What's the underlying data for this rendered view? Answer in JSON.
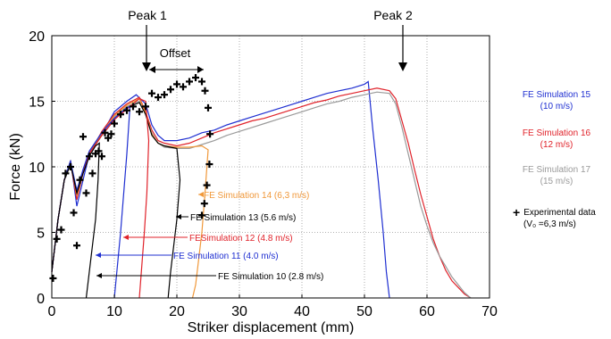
{
  "chart_data": {
    "type": "line",
    "title": "",
    "xlabel": "Striker displacement (mm)",
    "ylabel": "Force (kN)",
    "xlim": [
      0,
      70
    ],
    "ylim": [
      0,
      20
    ],
    "xticks": [
      "0",
      "10",
      "20",
      "30",
      "40",
      "50",
      "60",
      "70"
    ],
    "yticks": [
      "0",
      "5",
      "10",
      "15",
      "20"
    ],
    "grid": "dotted",
    "annotations": {
      "peak1": "Peak 1",
      "peak2": "Peak 2",
      "offset": "Offset"
    },
    "legend": {
      "placement": "right",
      "items": [
        {
          "line1": "FE Simulation 15",
          "line2": "(10 m/s)",
          "color": "#1f2fd1"
        },
        {
          "line1": "FE Simulation 16",
          "line2": "(12 m/s)",
          "color": "#e0222a"
        },
        {
          "line1": "FE Simulation 17",
          "line2": "(15 m/s)",
          "color": "#9a9a9a"
        },
        {
          "line1": "Experimental data",
          "line2": "(V₀ =6,3 m/s)",
          "color": "#000000",
          "marker": "+"
        }
      ]
    },
    "curve_labels": [
      {
        "text": "FE Simulation 14 (6,3 m/s)",
        "color": "#f0983a"
      },
      {
        "text": "FE Simulation 13  (5.6 m/s)",
        "color": "#000000"
      },
      {
        "text": "FESimulation 12 (4.8 m/s)",
        "color": "#e0222a"
      },
      {
        "text": "FE Simulation 11 (4.0 m/s)",
        "color": "#1f2fd1"
      },
      {
        "text": "FE Simulation 10 (2.8 m/s)",
        "color": "#000000"
      }
    ],
    "series": [
      {
        "name": "FE Simulation 15 (10 m/s)",
        "color": "#1f2fd1",
        "points": [
          [
            0,
            2
          ],
          [
            1,
            6
          ],
          [
            2,
            9
          ],
          [
            3,
            10.5
          ],
          [
            4,
            7
          ],
          [
            5,
            9
          ],
          [
            6,
            11
          ],
          [
            8,
            12.5
          ],
          [
            10,
            14.2
          ],
          [
            12,
            15
          ],
          [
            13.5,
            15.5
          ],
          [
            15,
            14.8
          ],
          [
            16,
            13.2
          ],
          [
            17,
            12.4
          ],
          [
            18,
            12
          ],
          [
            20,
            12
          ],
          [
            22,
            12.2
          ],
          [
            24,
            12.6
          ],
          [
            26,
            12.8
          ],
          [
            28,
            13.2
          ],
          [
            30,
            13.5
          ],
          [
            32,
            13.8
          ],
          [
            34,
            14.1
          ],
          [
            36,
            14.4
          ],
          [
            38,
            14.7
          ],
          [
            40,
            15.0
          ],
          [
            42,
            15.3
          ],
          [
            44,
            15.6
          ],
          [
            46,
            15.8
          ],
          [
            48,
            16.0
          ],
          [
            50,
            16.3
          ],
          [
            50.6,
            16.5
          ],
          [
            51.3,
            13
          ],
          [
            52.2,
            9
          ],
          [
            53,
            5
          ],
          [
            53.5,
            2
          ],
          [
            54,
            0
          ]
        ]
      },
      {
        "name": "FE Simulation 16 (12 m/s)",
        "color": "#e0222a",
        "points": [
          [
            0,
            2
          ],
          [
            1,
            6
          ],
          [
            2,
            9
          ],
          [
            3,
            10.3
          ],
          [
            4,
            7.5
          ],
          [
            5,
            9.5
          ],
          [
            6,
            11
          ],
          [
            8,
            12.7
          ],
          [
            10,
            14
          ],
          [
            12,
            14.8
          ],
          [
            14,
            15.3
          ],
          [
            15,
            14.2
          ],
          [
            16,
            12.8
          ],
          [
            17,
            12
          ],
          [
            18,
            11.8
          ],
          [
            20,
            11.6
          ],
          [
            22,
            11.8
          ],
          [
            24,
            12.2
          ],
          [
            26,
            12.6
          ],
          [
            28,
            12.9
          ],
          [
            30,
            13.2
          ],
          [
            32,
            13.5
          ],
          [
            34,
            13.7
          ],
          [
            36,
            14
          ],
          [
            38,
            14.3
          ],
          [
            40,
            14.6
          ],
          [
            42,
            14.9
          ],
          [
            44,
            15.1
          ],
          [
            46,
            15.4
          ],
          [
            48,
            15.6
          ],
          [
            50,
            15.8
          ],
          [
            52,
            16
          ],
          [
            54,
            15.8
          ],
          [
            55,
            15.2
          ],
          [
            56,
            13.5
          ],
          [
            57,
            11.8
          ],
          [
            58,
            9.8
          ],
          [
            59,
            7.9
          ],
          [
            60,
            6.2
          ],
          [
            61,
            4.5
          ],
          [
            62,
            3.2
          ],
          [
            63,
            2.1
          ],
          [
            64,
            1.3
          ],
          [
            65,
            0.8
          ],
          [
            66,
            0.3
          ],
          [
            67,
            0
          ]
        ]
      },
      {
        "name": "FE Simulation 17 (15 m/s)",
        "color": "#9a9a9a",
        "points": [
          [
            0,
            2
          ],
          [
            1,
            6
          ],
          [
            2,
            9
          ],
          [
            3,
            10.2
          ],
          [
            4,
            8
          ],
          [
            5,
            9.8
          ],
          [
            6,
            11.2
          ],
          [
            8,
            12.6
          ],
          [
            10,
            13.8
          ],
          [
            12,
            14.6
          ],
          [
            14,
            15
          ],
          [
            15,
            14
          ],
          [
            16,
            12.6
          ],
          [
            17,
            11.8
          ],
          [
            18,
            11.5
          ],
          [
            20,
            11.4
          ],
          [
            22,
            11.4
          ],
          [
            24,
            11.7
          ],
          [
            26,
            12
          ],
          [
            28,
            12.4
          ],
          [
            30,
            12.7
          ],
          [
            32,
            13
          ],
          [
            34,
            13.3
          ],
          [
            36,
            13.6
          ],
          [
            38,
            13.9
          ],
          [
            40,
            14.2
          ],
          [
            42,
            14.5
          ],
          [
            44,
            14.8
          ],
          [
            46,
            15
          ],
          [
            48,
            15.3
          ],
          [
            50,
            15.5
          ],
          [
            52,
            15.7
          ],
          [
            54,
            15.6
          ],
          [
            55,
            14.8
          ],
          [
            56,
            13
          ],
          [
            57,
            11
          ],
          [
            58,
            9
          ],
          [
            59,
            7
          ],
          [
            60,
            5.5
          ],
          [
            61,
            4.2
          ],
          [
            62,
            3.2
          ],
          [
            63,
            2.4
          ],
          [
            64,
            1.6
          ],
          [
            65,
            1.0
          ],
          [
            66,
            0.4
          ],
          [
            67,
            0
          ]
        ]
      },
      {
        "name": "FE Simulation 14 (6,3 m/s)",
        "color": "#f0983a",
        "points": [
          [
            0,
            2
          ],
          [
            1,
            6
          ],
          [
            2,
            9
          ],
          [
            3,
            10.4
          ],
          [
            4,
            7.8
          ],
          [
            5,
            9.5
          ],
          [
            6,
            11
          ],
          [
            8,
            12.5
          ],
          [
            10,
            13.9
          ],
          [
            12,
            14.7
          ],
          [
            14,
            15.2
          ],
          [
            15,
            14.1
          ],
          [
            16,
            12.5
          ],
          [
            17,
            11.8
          ],
          [
            18,
            11.6
          ],
          [
            20,
            11.5
          ],
          [
            22,
            11.5
          ],
          [
            24,
            11.6
          ],
          [
            25,
            11.3
          ],
          [
            24.5,
            8
          ],
          [
            24,
            5
          ],
          [
            23.5,
            3
          ],
          [
            23,
            1
          ],
          [
            22.5,
            0
          ]
        ]
      },
      {
        "name": "FE Simulation 13 (5.6 m/s)",
        "color": "#000000",
        "points": [
          [
            0,
            2
          ],
          [
            1,
            6
          ],
          [
            2,
            9
          ],
          [
            3,
            10.2
          ],
          [
            4,
            8.2
          ],
          [
            5,
            9.6
          ],
          [
            6,
            11
          ],
          [
            8,
            12.4
          ],
          [
            10,
            13.6
          ],
          [
            12,
            14.5
          ],
          [
            14,
            14.9
          ],
          [
            15,
            14
          ],
          [
            16,
            12.4
          ],
          [
            17,
            11.8
          ],
          [
            18,
            11.6
          ],
          [
            19,
            11.5
          ],
          [
            20,
            11.4
          ],
          [
            20.5,
            9
          ],
          [
            20,
            6
          ],
          [
            19.5,
            4
          ],
          [
            19,
            2
          ],
          [
            18.6,
            0
          ]
        ]
      },
      {
        "name": "FE Simulation 12 (4.8 m/s)",
        "color": "#e0222a",
        "points": [
          [
            0,
            2
          ],
          [
            1,
            6
          ],
          [
            2,
            9
          ],
          [
            3,
            10.3
          ],
          [
            4,
            8
          ],
          [
            5,
            9.6
          ],
          [
            6,
            11
          ],
          [
            8,
            12.4
          ],
          [
            10,
            13.6
          ],
          [
            12,
            14.4
          ],
          [
            14,
            15.2
          ],
          [
            15,
            15
          ],
          [
            15.5,
            12
          ],
          [
            15.2,
            8
          ],
          [
            14.8,
            5
          ],
          [
            14.4,
            2.5
          ],
          [
            14,
            0
          ]
        ]
      },
      {
        "name": "FE Simulation 11 (4.0 m/s)",
        "color": "#1f2fd1",
        "points": [
          [
            0,
            2
          ],
          [
            1,
            6
          ],
          [
            2,
            9
          ],
          [
            3,
            10.4
          ],
          [
            4,
            8.2
          ],
          [
            5,
            9.8
          ],
          [
            6,
            11.2
          ],
          [
            8,
            12.6
          ],
          [
            10,
            13.7
          ],
          [
            12,
            14.5
          ],
          [
            12.5,
            14.6
          ],
          [
            12,
            11
          ],
          [
            11.5,
            8
          ],
          [
            11,
            5
          ],
          [
            10.5,
            2.5
          ],
          [
            10,
            0
          ]
        ]
      },
      {
        "name": "FE Simulation 10 (2.8 m/s)",
        "color": "#000000",
        "points": [
          [
            0,
            2
          ],
          [
            1,
            6
          ],
          [
            2,
            9
          ],
          [
            3,
            10.2
          ],
          [
            4,
            8
          ],
          [
            5,
            9.5
          ],
          [
            6,
            10.8
          ],
          [
            7,
            11.6
          ],
          [
            7.6,
            11.8
          ],
          [
            7.4,
            9
          ],
          [
            7,
            6
          ],
          [
            6.5,
            4
          ],
          [
            6,
            2
          ],
          [
            5.5,
            0
          ]
        ]
      },
      {
        "name": "Experimental data",
        "color": "#000000",
        "marker": "+",
        "points": [
          [
            0.2,
            1.5
          ],
          [
            0.8,
            4.5
          ],
          [
            1.5,
            5.2
          ],
          [
            2.2,
            9.5
          ],
          [
            3,
            10
          ],
          [
            3.5,
            6.5
          ],
          [
            4,
            4
          ],
          [
            4.5,
            9
          ],
          [
            5,
            12.3
          ],
          [
            5.5,
            8
          ],
          [
            6,
            10.8
          ],
          [
            6.5,
            9.5
          ],
          [
            7,
            11
          ],
          [
            7.5,
            11.2
          ],
          [
            8,
            10.8
          ],
          [
            8.5,
            12.6
          ],
          [
            9,
            12.2
          ],
          [
            9.5,
            12.5
          ],
          [
            10,
            13.3
          ],
          [
            11,
            14
          ],
          [
            12,
            14.3
          ],
          [
            13,
            14.6
          ],
          [
            14,
            14.2
          ],
          [
            15,
            14.6
          ],
          [
            16,
            15.6
          ],
          [
            17,
            15.3
          ],
          [
            18,
            15.5
          ],
          [
            19,
            15.9
          ],
          [
            20,
            16.3
          ],
          [
            21,
            16.1
          ],
          [
            22,
            16.5
          ],
          [
            23,
            16.8
          ],
          [
            24,
            16.5
          ],
          [
            24.5,
            15.8
          ],
          [
            25,
            14.5
          ],
          [
            25.3,
            12.5
          ],
          [
            25.2,
            10.2
          ],
          [
            24.8,
            8.6
          ],
          [
            24.4,
            7.2
          ],
          [
            24,
            6.3
          ]
        ]
      }
    ]
  }
}
